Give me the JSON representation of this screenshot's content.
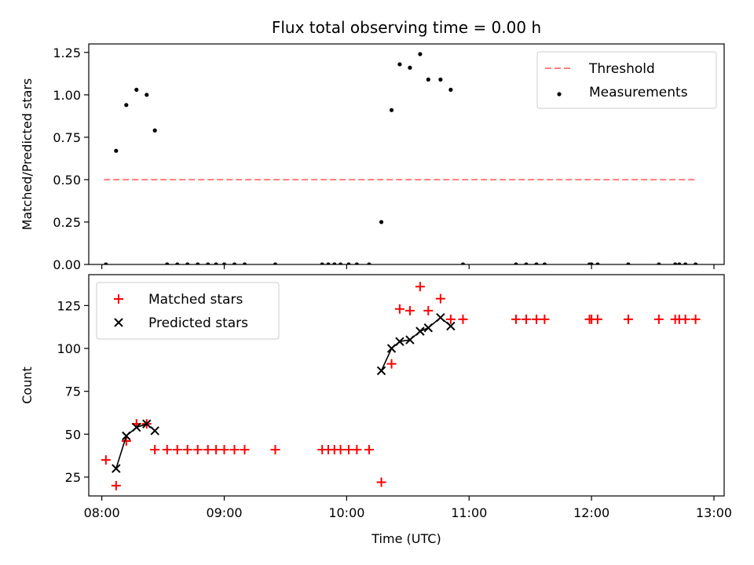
{
  "chart_data": [
    {
      "type": "scatter",
      "title": "Flux total observing time = 0.00 h",
      "xlabel": "",
      "ylabel": "Matched/Predicted stars",
      "ylim": [
        0,
        1.3
      ],
      "yticks": [
        "0.00",
        "0.25",
        "0.50",
        "0.75",
        "1.00",
        "1.25"
      ],
      "legend_position": "top-right",
      "series": [
        {
          "name": "Threshold",
          "kind": "dashed-line",
          "color": "#ff7f7f",
          "x": [
            "08:01",
            "12:52"
          ],
          "y": [
            0.5,
            0.5
          ]
        },
        {
          "name": "Measurements",
          "kind": "point",
          "color": "#000000",
          "x": [
            "08:02",
            "08:07",
            "08:12",
            "08:17",
            "08:22",
            "08:26",
            "08:32",
            "08:37",
            "08:42",
            "08:47",
            "08:52",
            "08:56",
            "09:00",
            "09:05",
            "09:10",
            "09:25",
            "09:48",
            "09:51",
            "09:54",
            "09:57",
            "10:01",
            "10:05",
            "10:11",
            "10:17",
            "10:22",
            "10:26",
            "10:31",
            "10:36",
            "10:40",
            "10:46",
            "10:51",
            "10:57",
            "11:23",
            "11:28",
            "11:33",
            "11:37",
            "11:59",
            "12:00",
            "12:03",
            "12:18",
            "12:33",
            "12:41",
            "12:43",
            "12:46",
            "12:51"
          ],
          "y": [
            0,
            0.67,
            0.94,
            1.03,
            1.0,
            0.79,
            0,
            0,
            0,
            0,
            0,
            0,
            0,
            0,
            0,
            0,
            0,
            0,
            0,
            0,
            0,
            0,
            0,
            0.25,
            0.91,
            1.18,
            1.16,
            1.24,
            1.09,
            1.09,
            1.03,
            0,
            0,
            0,
            0,
            0,
            0,
            0,
            0,
            0,
            0,
            0,
            0,
            0,
            0
          ]
        }
      ]
    },
    {
      "type": "scatter",
      "title": "",
      "xlabel": "Time (UTC)",
      "ylabel": "Count",
      "ylim": [
        14,
        143
      ],
      "yticks": [
        "25",
        "50",
        "75",
        "100",
        "125"
      ],
      "xticks": [
        "08:00",
        "09:00",
        "10:00",
        "11:00",
        "12:00",
        "13:00"
      ],
      "legend_position": "top-left",
      "series": [
        {
          "name": "Matched stars",
          "kind": "plus",
          "color": "#ff0000",
          "x": [
            "08:02",
            "08:07",
            "08:12",
            "08:17",
            "08:22",
            "08:26",
            "08:32",
            "08:37",
            "08:42",
            "08:47",
            "08:52",
            "08:56",
            "09:00",
            "09:05",
            "09:10",
            "09:25",
            "09:48",
            "09:51",
            "09:54",
            "09:57",
            "10:01",
            "10:05",
            "10:11",
            "10:17",
            "10:22",
            "10:26",
            "10:31",
            "10:36",
            "10:40",
            "10:46",
            "10:51",
            "10:57",
            "11:23",
            "11:28",
            "11:33",
            "11:37",
            "11:59",
            "12:00",
            "12:03",
            "12:18",
            "12:33",
            "12:41",
            "12:43",
            "12:46",
            "12:51"
          ],
          "y": [
            35,
            20,
            46,
            56,
            56,
            41,
            41,
            41,
            41,
            41,
            41,
            41,
            41,
            41,
            41,
            41,
            41,
            41,
            41,
            41,
            41,
            41,
            41,
            22,
            91,
            123,
            122,
            136,
            122,
            129,
            117,
            117,
            117,
            117,
            117,
            117,
            117,
            117,
            117,
            117,
            117,
            117,
            117,
            117,
            117
          ]
        },
        {
          "name": "Predicted stars",
          "kind": "cross-line",
          "color": "#000000",
          "x": [
            "08:07",
            "08:12",
            "08:17",
            "08:22",
            "08:26"
          ],
          "y": [
            30,
            49,
            54,
            56,
            52
          ]
        },
        {
          "name": "",
          "kind": "cross-line",
          "color": "#000000",
          "x": [
            "10:17",
            "10:22",
            "10:26",
            "10:31",
            "10:36",
            "10:40",
            "10:46",
            "10:51"
          ],
          "y": [
            87,
            100,
            104,
            105,
            110,
            112,
            118,
            113
          ]
        }
      ]
    }
  ]
}
